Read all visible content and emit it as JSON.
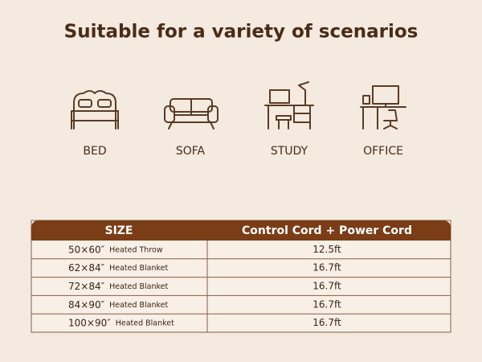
{
  "header": {
    "title": "Suitable for a variety of scenarios"
  },
  "scenarios": [
    {
      "label": "BED"
    },
    {
      "label": "SOFA"
    },
    {
      "label": "STUDY"
    },
    {
      "label": "OFFICE"
    }
  ],
  "table": {
    "columns": [
      "SIZE",
      "Control Cord + Power Cord"
    ],
    "rows": [
      {
        "size": "50×60″",
        "product": "Heated Throw",
        "cord": "12.5ft"
      },
      {
        "size": "62×84″",
        "product": "Heated Blanket",
        "cord": "16.7ft"
      },
      {
        "size": "72×84″",
        "product": "Heated Blanket",
        "cord": "16.7ft"
      },
      {
        "size": "84×90″",
        "product": "Heated Blanket",
        "cord": "16.7ft"
      },
      {
        "size": "100×90″",
        "product": "Heated Blanket",
        "cord": "16.7ft"
      }
    ]
  }
}
